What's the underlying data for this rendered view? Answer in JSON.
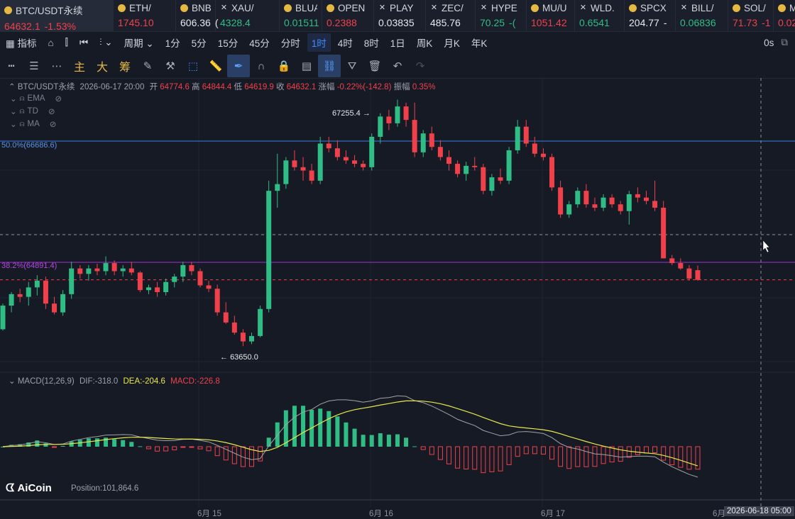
{
  "ticker": [
    {
      "name": "BTC/USDT永续",
      "price": "64632.1",
      "change": "-1.53%",
      "icon": "coin-icon",
      "dir": "dn"
    },
    {
      "name": "ETH/",
      "price": "1745.10",
      "change": "",
      "icon": "coin-icon",
      "dir": "dn"
    },
    {
      "name": "BNB/",
      "price": "606.36",
      "change": "(",
      "icon": "coin-icon",
      "dir": "wh"
    },
    {
      "name": "XAU/",
      "price": "4328.4",
      "change": "",
      "icon": "x-icon",
      "dir": "up"
    },
    {
      "name": "BLUA",
      "price": "0.01511",
      "change": "",
      "icon": "coin-icon",
      "dir": "up"
    },
    {
      "name": "OPEN",
      "price": "0.2388",
      "change": "",
      "icon": "coin-icon",
      "dir": "dn"
    },
    {
      "name": "PLAY",
      "price": "0.03835",
      "change": "",
      "icon": "x-icon",
      "dir": "wh"
    },
    {
      "name": "ZEC/",
      "price": "485.76",
      "change": "",
      "icon": "x-icon",
      "dir": "wh"
    },
    {
      "name": "HYPE",
      "price": "70.25",
      "change": "-(",
      "icon": "x-icon",
      "dir": "up"
    },
    {
      "name": "MU/U",
      "price": "1051.42",
      "change": "",
      "icon": "coin-icon",
      "dir": "dn"
    },
    {
      "name": "WLD.",
      "price": "0.6541",
      "change": "",
      "icon": "x-icon",
      "dir": "up"
    },
    {
      "name": "SPCX",
      "price": "204.77",
      "change": "-",
      "icon": "coin-icon",
      "dir": "wh"
    },
    {
      "name": "BILL/",
      "price": "0.06836",
      "change": "",
      "icon": "x-icon",
      "dir": "up"
    },
    {
      "name": "SOL/",
      "price": "71.73",
      "change": "-1",
      "icon": "coin-icon",
      "dir": "dn"
    },
    {
      "name": "M",
      "price": "0.02",
      "change": "",
      "icon": "coin-icon",
      "dir": "dn"
    }
  ],
  "toolbar": {
    "indicator": "指标",
    "period": "周期",
    "intervals": [
      "1分",
      "5分",
      "15分",
      "45分",
      "分时",
      "1时",
      "4时",
      "8时",
      "1日",
      "周K",
      "月K",
      "年K"
    ],
    "active_interval": "1时",
    "countdown": "0s"
  },
  "drawbar": {
    "main": "主",
    "big": "大",
    "chip": "筹"
  },
  "info": {
    "symbol": "BTC/USDT永续",
    "datetime": "2026-06-17 20:00",
    "open_label": "开",
    "open": "64774.6",
    "high_label": "高",
    "high": "64844.4",
    "low_label": "低",
    "low": "64619.9",
    "close_label": "收",
    "close": "64632.1",
    "chg_label": "涨幅",
    "chg": "-0.22%(-142.8)",
    "amp_label": "振幅",
    "amp": "0.35%"
  },
  "layers": [
    "EMA",
    "TD",
    "MA"
  ],
  "fib": {
    "f50": "50.0%(66686.6)",
    "f382": "38.2%(64891.4)"
  },
  "notes": {
    "high": "67255.4",
    "low": "63650.0"
  },
  "macd": {
    "label": "MACD(12,26,9)",
    "dif": "DIF:-318.0",
    "dea": "DEA:-204.6",
    "macd": "MACD:-226.8"
  },
  "position": {
    "label": "Position:101,864.6"
  },
  "brand": "AiCoin",
  "xaxis": [
    "6月 15",
    "6月 16",
    "6月 17",
    "6月"
  ],
  "cursor_time": "2026-06-18 05:00",
  "colors": {
    "up": "#2fbd85",
    "down": "#f0414b",
    "dea": "#e8e84a",
    "dif": "#a3a3a3",
    "fib50": "#3d7fe0",
    "fib382": "#a42fd6"
  },
  "chart_data": {
    "type": "candlestick",
    "interval": "1h",
    "ohlc": [
      [
        63900,
        64280,
        63880,
        64250
      ],
      [
        64250,
        64450,
        64150,
        64420
      ],
      [
        64420,
        64500,
        64300,
        64380
      ],
      [
        64380,
        64600,
        64250,
        64520
      ],
      [
        64520,
        64700,
        64400,
        64620
      ],
      [
        64620,
        64680,
        64200,
        64280
      ],
      [
        64280,
        64380,
        64120,
        64150
      ],
      [
        64150,
        64480,
        64100,
        64420
      ],
      [
        64420,
        64900,
        64350,
        64800
      ],
      [
        64800,
        64850,
        64650,
        64720
      ],
      [
        64720,
        64850,
        64620,
        64800
      ],
      [
        64800,
        64870,
        64700,
        64760
      ],
      [
        64760,
        64980,
        64700,
        64880
      ],
      [
        64880,
        64920,
        64700,
        64760
      ],
      [
        64760,
        64850,
        64680,
        64800
      ],
      [
        64800,
        64900,
        64700,
        64740
      ],
      [
        64740,
        64760,
        64450,
        64480
      ],
      [
        64480,
        64560,
        64420,
        64520
      ],
      [
        64520,
        64600,
        64380,
        64450
      ],
      [
        64450,
        64650,
        64400,
        64600
      ],
      [
        64600,
        64720,
        64520,
        64680
      ],
      [
        64680,
        64900,
        64600,
        64850
      ],
      [
        64850,
        64900,
        64700,
        64760
      ],
      [
        64760,
        64800,
        64520,
        64550
      ],
      [
        64550,
        64620,
        64450,
        64500
      ],
      [
        64500,
        64560,
        64100,
        64150
      ],
      [
        64150,
        64300,
        63980,
        64000
      ],
      [
        64000,
        64100,
        63820,
        63850
      ],
      [
        63850,
        63900,
        63650,
        63720
      ],
      [
        63720,
        63850,
        63680,
        63800
      ],
      [
        63800,
        64250,
        63780,
        64200
      ],
      [
        64200,
        66100,
        64150,
        65950
      ],
      [
        65950,
        66500,
        65700,
        66050
      ],
      [
        66050,
        66450,
        65980,
        66400
      ],
      [
        66400,
        66550,
        66250,
        66300
      ],
      [
        66300,
        66450,
        66100,
        66250
      ],
      [
        66250,
        66350,
        66050,
        66100
      ],
      [
        66100,
        66750,
        66050,
        66650
      ],
      [
        66650,
        66750,
        66520,
        66580
      ],
      [
        66580,
        66700,
        66400,
        66450
      ],
      [
        66450,
        66550,
        66350,
        66400
      ],
      [
        66400,
        66480,
        66300,
        66350
      ],
      [
        66350,
        66400,
        66250,
        66300
      ],
      [
        66300,
        66800,
        66250,
        66750
      ],
      [
        66750,
        67100,
        66650,
        67050
      ],
      [
        67050,
        67150,
        66850,
        66950
      ],
      [
        66950,
        67300,
        66900,
        67200
      ],
      [
        67200,
        67255.4,
        66900,
        67000
      ],
      [
        67000,
        67255.4,
        66450,
        66520
      ],
      [
        66520,
        66850,
        66450,
        66800
      ],
      [
        66800,
        66900,
        66550,
        66600
      ],
      [
        66600,
        66700,
        66400,
        66450
      ],
      [
        66450,
        66550,
        66250,
        66350
      ],
      [
        66350,
        66400,
        66150,
        66200
      ],
      [
        66200,
        66380,
        66100,
        66320
      ],
      [
        66320,
        66450,
        66250,
        66300
      ],
      [
        66300,
        66350,
        65900,
        65950
      ],
      [
        65950,
        66200,
        65880,
        66150
      ],
      [
        66150,
        66280,
        66050,
        66100
      ],
      [
        66100,
        66600,
        66050,
        66550
      ],
      [
        66550,
        67000,
        66500,
        66900
      ],
      [
        66900,
        67000,
        66600,
        66650
      ],
      [
        66650,
        66750,
        66450,
        66500
      ],
      [
        66500,
        66580,
        66400,
        66450
      ],
      [
        66450,
        66500,
        65950,
        66000
      ],
      [
        66000,
        66100,
        65550,
        65600
      ],
      [
        65600,
        65800,
        65550,
        65750
      ],
      [
        65750,
        66000,
        65700,
        65950
      ],
      [
        65950,
        66050,
        65700,
        65750
      ],
      [
        65750,
        65850,
        65650,
        65700
      ],
      [
        65700,
        65900,
        65650,
        65850
      ],
      [
        65850,
        65900,
        65700,
        65750
      ],
      [
        65750,
        65800,
        65600,
        65650
      ],
      [
        65650,
        65950,
        65450,
        65900
      ],
      [
        65900,
        66000,
        65780,
        65850
      ],
      [
        65850,
        65950,
        65750,
        65800
      ],
      [
        65800,
        66100,
        65650,
        65700
      ],
      [
        65700,
        65800,
        64950,
        64950
      ],
      [
        64950,
        65000,
        64850,
        64880
      ],
      [
        64880,
        64950,
        64780,
        64800
      ],
      [
        64800,
        64850,
        64620,
        64650
      ],
      [
        64774.6,
        64844.4,
        64619.9,
        64632.1
      ]
    ],
    "ylim": [
      63400,
      67600
    ]
  }
}
